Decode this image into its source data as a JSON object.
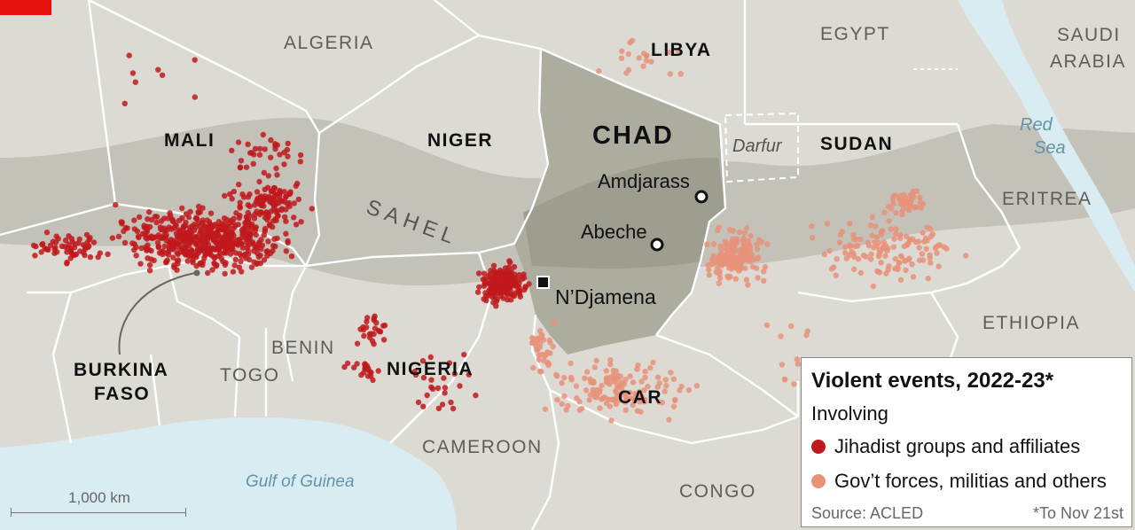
{
  "map": {
    "countries": {
      "algeria": "ALGERIA",
      "libya": "LIBYA",
      "egypt": "EGYPT",
      "saudi_line1": "SAUDI",
      "saudi_line2": "ARABIA",
      "mali": "MALI",
      "niger": "NIGER",
      "chad": "CHAD",
      "sudan": "SUDAN",
      "eritrea": "ERITREA",
      "ethiopia": "ETHIOPIA",
      "burkina_line1": "BURKINA",
      "burkina_line2": "FASO",
      "togo": "TOGO",
      "benin": "BENIN",
      "nigeria": "NIGERIA",
      "cameroon": "CAMEROON",
      "car": "CAR",
      "congo": "CONGO"
    },
    "regions": {
      "darfur": "Darfur",
      "sahel": "SAHEL"
    },
    "water": {
      "red_sea_line1": "Red",
      "red_sea_line2": "Sea",
      "gulf": "Gulf of Guinea"
    },
    "cities": {
      "amdjarass": "Amdjarass",
      "abeche": "Abeche",
      "ndjamena": "N’Djamena"
    }
  },
  "legend": {
    "title": "Violent events, 2022-23*",
    "subtitle": "Involving",
    "items": [
      {
        "label": "Jihadist groups and affiliates",
        "color": "#c0191c"
      },
      {
        "label": "Gov’t forces, militias and others",
        "color": "#e8927a"
      }
    ],
    "source": "Source: ACLED",
    "footnote": "*To Nov 21st"
  },
  "scale": {
    "label": "1,000 km"
  },
  "colors": {
    "land": "#dcdad3",
    "sahel_band": "#c4c1b8",
    "chad": "#aeab9f",
    "water": "#d9ecf2",
    "borders": "#ffffff",
    "jihadist": "#c0191c",
    "government": "#e8927a",
    "brand_red": "#e3120b"
  }
}
